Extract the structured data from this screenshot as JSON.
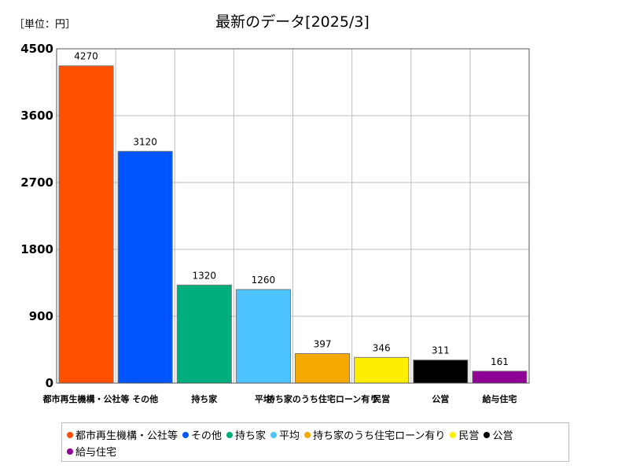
{
  "chart_data": {
    "type": "bar",
    "title": "最新のデータ[2025/3]",
    "unit_label": "［単位：円］",
    "categories": [
      "都市再生機構・公社等",
      "その他",
      "持ち家",
      "平均",
      "持ち家のうち住宅ローン有り",
      "民営",
      "公営",
      "給与住宅"
    ],
    "values": [
      4270,
      3120,
      1320,
      1260,
      397,
      346,
      311,
      161
    ],
    "value_labels": [
      "4270",
      "3120",
      "1320",
      "1260",
      "397",
      "346",
      "311",
      "161"
    ],
    "colors": [
      "#ff4f00",
      "#0055ff",
      "#00ad7c",
      "#4dc4ff",
      "#f5a800",
      "#ffee00",
      "#000000",
      "#8e0096"
    ],
    "ylim": [
      0,
      4500
    ],
    "yticks": [
      0,
      900,
      1800,
      2700,
      3600,
      4500
    ],
    "ytick_labels": [
      "0",
      "900",
      "1800",
      "2700",
      "3600",
      "4500"
    ],
    "grid": true,
    "legend_position": "bottom"
  }
}
